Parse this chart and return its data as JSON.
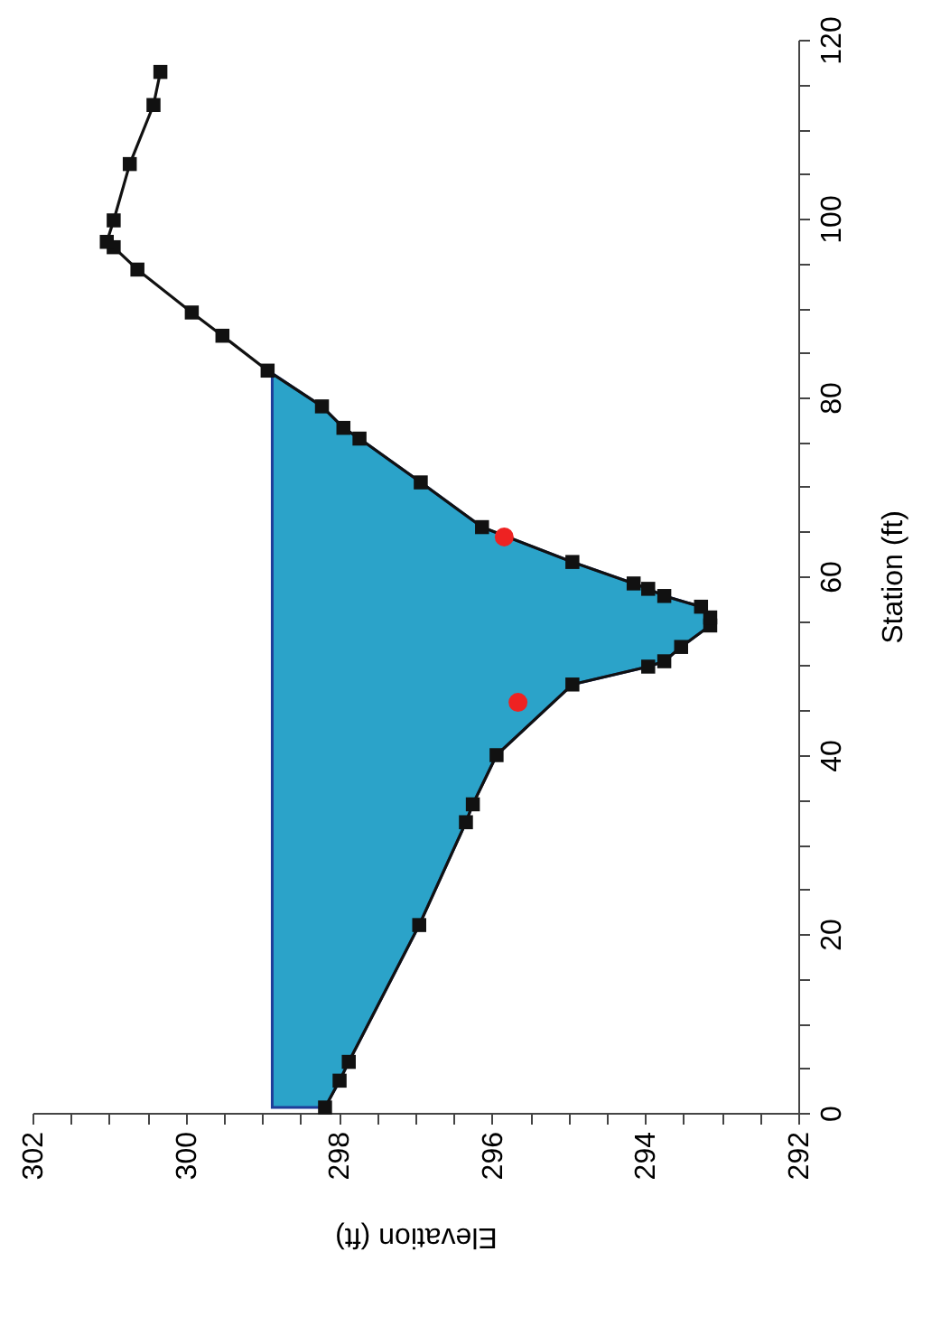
{
  "chart_data": {
    "type": "line",
    "xlabel": "Elevation (ft)",
    "ylabel": "Station (ft)",
    "xlim": [
      302,
      292
    ],
    "ylim": [
      0,
      120
    ],
    "xticks": [
      302,
      {
        "value": 301.5,
        "label": null
      },
      {
        "value": 301,
        "label": null
      },
      {
        "value": 300.5,
        "label": null
      },
      300,
      {
        "value": 299.5,
        "label": null
      },
      {
        "value": 299,
        "label": null
      },
      {
        "value": 298.5,
        "label": null
      },
      298,
      {
        "value": 297.5,
        "label": null
      },
      {
        "value": 297,
        "label": null
      },
      {
        "value": 296.5,
        "label": null
      },
      296,
      {
        "value": 295.5,
        "label": null
      },
      {
        "value": 295,
        "label": null
      },
      {
        "value": 294.5,
        "label": null
      },
      294,
      {
        "value": 293.5,
        "label": null
      },
      {
        "value": 293,
        "label": null
      },
      {
        "value": 292.5,
        "label": null
      },
      292
    ],
    "yticks": [
      0,
      {
        "value": 5,
        "label": null
      },
      {
        "value": 10,
        "label": null
      },
      {
        "value": 15,
        "label": null
      },
      20,
      {
        "value": 25,
        "label": null
      },
      {
        "value": 30,
        "label": null
      },
      {
        "value": 35,
        "label": null
      },
      40,
      {
        "value": 45,
        "label": null
      },
      {
        "value": 50,
        "label": null
      },
      {
        "value": 55,
        "label": null
      },
      60,
      {
        "value": 65,
        "label": null
      },
      {
        "value": 70,
        "label": null
      },
      {
        "value": 75,
        "label": null
      },
      80,
      {
        "value": 85,
        "label": null
      },
      {
        "value": 90,
        "label": null
      },
      {
        "value": 95,
        "label": null
      },
      100,
      {
        "value": 105,
        "label": null
      },
      {
        "value": 110,
        "label": null
      },
      {
        "value": 115,
        "label": null
      },
      120
    ],
    "grid": false,
    "series": [
      {
        "type": "area",
        "color": "#2ba3c9",
        "x": [
          298.18,
          297.99,
          297.87,
          296.95,
          296.34,
          296.25,
          295.94,
          294.95,
          293.96,
          293.75,
          293.53,
          293.15,
          293.15,
          293.27,
          293.75,
          293.96,
          294.15,
          294.95,
          296.13,
          296.93,
          297.73,
          297.94,
          298.22,
          298.87,
          298.87
        ],
        "values": [
          0.6,
          3.6,
          5.7,
          21.0,
          32.5,
          34.5,
          40.0,
          47.9,
          49.9,
          50.5,
          52.1,
          54.5,
          55.4,
          56.6,
          57.8,
          58.6,
          59.2,
          61.6,
          65.5,
          70.5,
          75.4,
          76.6,
          79.0,
          82.7,
          0.6
        ]
      },
      {
        "color": "#111111",
        "marker": "square",
        "line_style": "solid",
        "x": [
          298.18,
          297.99,
          297.87,
          296.95,
          296.34,
          296.25,
          295.94,
          294.95,
          293.96,
          293.75,
          293.53,
          293.15,
          293.15,
          293.27,
          293.75,
          293.96,
          294.15,
          294.95,
          296.13,
          296.93,
          297.73,
          297.94,
          298.22,
          298.93,
          299.52,
          299.92,
          300.63,
          300.94,
          301.03,
          300.94,
          300.73,
          300.42,
          300.33
        ],
        "values": [
          0.6,
          3.6,
          5.7,
          21.0,
          32.5,
          34.5,
          40.0,
          47.9,
          49.9,
          50.5,
          52.1,
          54.5,
          55.4,
          56.6,
          57.8,
          58.6,
          59.2,
          61.6,
          65.5,
          70.5,
          75.4,
          76.6,
          79.0,
          83.0,
          86.9,
          89.5,
          94.3,
          96.8,
          97.4,
          99.8,
          106.1,
          112.7,
          116.4
        ]
      },
      {
        "type": "scatter",
        "color": "#ee2222",
        "marker": "circle",
        "x": [
          295.66,
          295.84
        ],
        "values": [
          45.9,
          64.4
        ]
      }
    ]
  }
}
